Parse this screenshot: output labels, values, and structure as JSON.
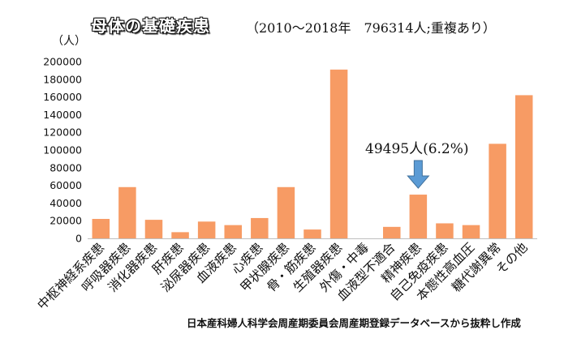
{
  "header": {
    "title": "母体の基礎疾患",
    "subtitle": "（2010～2018年　796314人;重複あり）"
  },
  "source_note": "日本産科婦人科学会周産期委員会周産期登録データベースから抜粋し作成",
  "chart_data": {
    "type": "bar",
    "title": "母体の基礎疾患",
    "ylabel": "（人）",
    "ylim": [
      0,
      200000
    ],
    "ytick_step": 20000,
    "grid": false,
    "bar_color": "#F79B64",
    "arrow_color": "#5B9BD5",
    "categories": [
      "中枢神経系疾患",
      "呼吸器疾患",
      "消化器疾患",
      "肝疾患",
      "泌尿器疾患",
      "血液疾患",
      "心疾患",
      "甲状腺疾患",
      "骨・筋疾患",
      "生殖器疾患",
      "外傷・中毒",
      "血液型不適合",
      "精神疾患",
      "自己免疫疾患",
      "本態性高血圧",
      "糖代謝異常",
      "その他"
    ],
    "values": [
      22000,
      58000,
      21000,
      7000,
      19000,
      15000,
      23000,
      58000,
      10000,
      191000,
      0,
      13000,
      49495,
      17000,
      15000,
      107000,
      162000
    ],
    "annotation": {
      "category": "精神疾患",
      "text": "49495人(6.2%)"
    }
  }
}
